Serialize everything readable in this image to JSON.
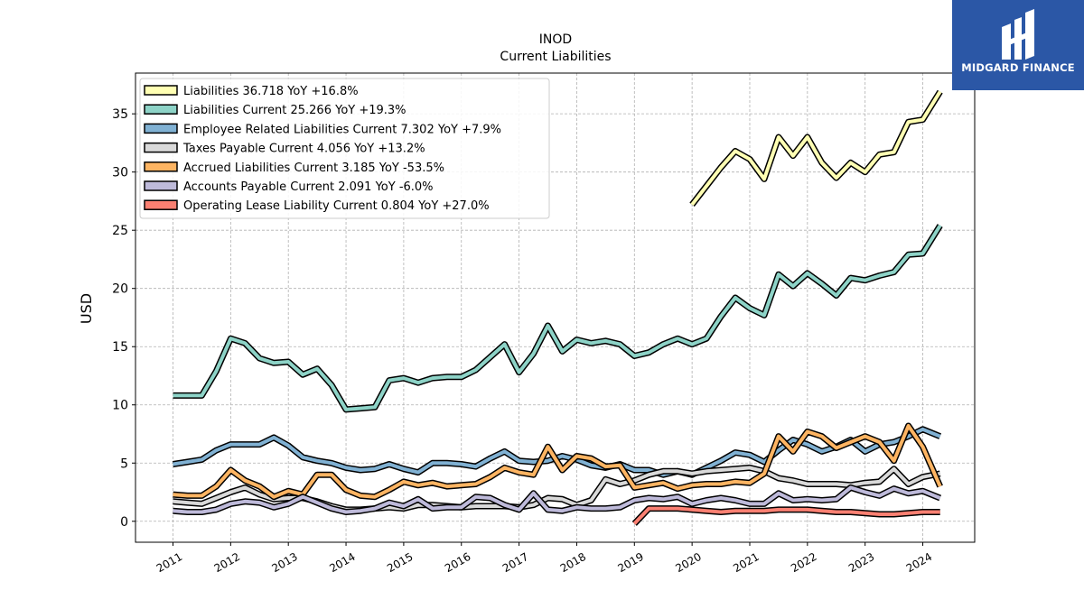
{
  "brand": {
    "name": "MIDGARD FINANCE",
    "bg": "#2b57a6"
  },
  "chart_data": {
    "type": "line",
    "title": "INOD",
    "subtitle": "Current  Liabilities",
    "ylabel": "USD",
    "xlabel": "",
    "xlim": [
      2010.35,
      2024.9
    ],
    "ylim": [
      -1.8,
      38.5
    ],
    "yticks": [
      0,
      5,
      10,
      15,
      20,
      25,
      30,
      35
    ],
    "xticks": [
      "2011",
      "2012",
      "2013",
      "2014",
      "2015",
      "2016",
      "2017",
      "2018",
      "2019",
      "2020",
      "2021",
      "2022",
      "2023",
      "2024"
    ],
    "grid": true,
    "legend_position": "top-left",
    "series": [
      {
        "name": "Liabilities",
        "legend": "Liabilities  36.718 YoY +16.8%",
        "color": "#ffffb3",
        "x": [
          2020.0,
          2020.25,
          2020.5,
          2020.75,
          2021.0,
          2021.25,
          2021.5,
          2021.75,
          2022.0,
          2022.25,
          2022.5,
          2022.75,
          2023.0,
          2023.25,
          2023.5,
          2023.75,
          2024.0,
          2024.3
        ],
        "y": [
          27.2,
          28.8,
          30.4,
          31.8,
          31.1,
          29.4,
          33.0,
          31.4,
          33.0,
          30.8,
          29.5,
          30.8,
          30.0,
          31.5,
          31.7,
          34.3,
          34.5,
          36.9
        ]
      },
      {
        "name": "Liabilities Current",
        "legend": "Liabilities Current  25.266 YoY +19.3%",
        "color": "#8dd3c7",
        "x": [
          2011.0,
          2011.25,
          2011.5,
          2011.75,
          2012.0,
          2012.25,
          2012.5,
          2012.75,
          2013.0,
          2013.25,
          2013.5,
          2013.75,
          2014.0,
          2014.25,
          2014.5,
          2014.75,
          2015.0,
          2015.25,
          2015.5,
          2015.75,
          2016.0,
          2016.25,
          2016.5,
          2016.75,
          2017.0,
          2017.25,
          2017.5,
          2017.75,
          2018.0,
          2018.25,
          2018.5,
          2018.75,
          2019.0,
          2019.25,
          2019.5,
          2019.75,
          2020.0,
          2020.25,
          2020.5,
          2020.75,
          2021.0,
          2021.25,
          2021.5,
          2021.75,
          2022.0,
          2022.25,
          2022.5,
          2022.75,
          2023.0,
          2023.25,
          2023.5,
          2023.75,
          2024.0,
          2024.3
        ],
        "y": [
          10.8,
          10.8,
          10.8,
          12.9,
          15.7,
          15.3,
          14.0,
          13.6,
          13.7,
          12.6,
          13.1,
          11.7,
          9.6,
          9.7,
          9.8,
          12.1,
          12.3,
          11.9,
          12.3,
          12.4,
          12.4,
          13.0,
          14.1,
          15.2,
          12.8,
          14.4,
          16.8,
          14.6,
          15.6,
          15.3,
          15.5,
          15.2,
          14.2,
          14.5,
          15.2,
          15.7,
          15.2,
          15.7,
          17.6,
          19.2,
          18.3,
          17.7,
          21.2,
          20.2,
          21.3,
          20.4,
          19.4,
          20.9,
          20.7,
          21.1,
          21.4,
          22.9,
          23.0,
          25.4
        ]
      },
      {
        "name": "Employee Related Liabilities Current",
        "legend": "Employee Related Liabilities Current  7.302 YoY +7.9%",
        "color": "#80b1d3",
        "x": [
          2011.0,
          2011.25,
          2011.5,
          2011.75,
          2012.0,
          2012.25,
          2012.5,
          2012.75,
          2013.0,
          2013.25,
          2013.5,
          2013.75,
          2014.0,
          2014.25,
          2014.5,
          2014.75,
          2015.0,
          2015.25,
          2015.5,
          2015.75,
          2016.0,
          2016.25,
          2016.5,
          2016.75,
          2017.0,
          2017.25,
          2017.5,
          2017.75,
          2018.0,
          2018.25,
          2018.5,
          2018.75,
          2019.0,
          2019.25,
          2019.5,
          2019.75,
          2020.0,
          2020.25,
          2020.5,
          2020.75,
          2021.0,
          2021.25,
          2021.5,
          2021.75,
          2022.0,
          2022.25,
          2022.5,
          2022.75,
          2023.0,
          2023.25,
          2023.5,
          2023.75,
          2024.0,
          2024.3
        ],
        "y": [
          4.9,
          5.1,
          5.3,
          6.1,
          6.6,
          6.6,
          6.6,
          7.2,
          6.5,
          5.5,
          5.2,
          5.0,
          4.6,
          4.4,
          4.5,
          4.9,
          4.5,
          4.2,
          5.0,
          5.0,
          4.9,
          4.7,
          5.4,
          6.0,
          5.2,
          5.1,
          5.2,
          5.6,
          5.3,
          4.8,
          4.6,
          4.9,
          4.4,
          4.4,
          4.0,
          4.3,
          4.0,
          4.6,
          5.2,
          5.9,
          5.7,
          5.1,
          6.1,
          7.0,
          6.6,
          6.0,
          6.4,
          7.0,
          6.0,
          6.6,
          6.8,
          7.3,
          7.9,
          7.3
        ]
      },
      {
        "name": "Taxes Payable Current",
        "legend": "Taxes Payable Current  4.056 YoY +13.2%",
        "color": "#d9d9d9",
        "x": [
          2011.0,
          2011.25,
          2011.5,
          2011.75,
          2012.0,
          2012.25,
          2012.5,
          2012.75,
          2013.0,
          2013.25,
          2013.5,
          2013.75,
          2014.0,
          2014.25,
          2014.5,
          2014.75,
          2015.0,
          2015.25,
          2015.5,
          2015.75,
          2016.0,
          2016.25,
          2016.5,
          2016.75,
          2017.0,
          2017.25,
          2017.5,
          2017.75,
          2018.0,
          2018.25,
          2018.5,
          2018.75,
          2019.0,
          2019.25,
          2019.5,
          2019.75,
          2020.0,
          2020.25,
          2020.5,
          2020.75,
          2021.0,
          2021.25,
          2021.5,
          2021.75,
          2022.0,
          2022.25,
          2022.5,
          2022.75,
          2023.0,
          2023.25,
          2023.5,
          2023.75,
          2024.0,
          2024.3
        ],
        "y": [
          1.7,
          1.6,
          1.5,
          2.0,
          2.5,
          2.9,
          2.3,
          1.9,
          2.0,
          2.0,
          1.7,
          1.3,
          1.0,
          1.0,
          1.1,
          1.2,
          1.1,
          1.4,
          1.4,
          1.3,
          1.2,
          1.3,
          1.3,
          1.3,
          1.2,
          1.4,
          2.0,
          1.9,
          1.4,
          1.8,
          3.6,
          3.2,
          3.5,
          4.0,
          4.3,
          4.3,
          4.1,
          4.3,
          4.4,
          4.5,
          4.6,
          4.3,
          3.7,
          3.5,
          3.2,
          3.2,
          3.2,
          3.1,
          3.3,
          3.4,
          4.5,
          3.2,
          3.8,
          4.1
        ]
      },
      {
        "name": "Accrued Liabilities Current",
        "legend": "Accrued Liabilities Current  3.185 YoY -53.5%",
        "color": "#fdb462",
        "x": [
          2011.0,
          2011.25,
          2011.5,
          2011.75,
          2012.0,
          2012.25,
          2012.5,
          2012.75,
          2013.0,
          2013.25,
          2013.5,
          2013.75,
          2014.0,
          2014.25,
          2014.5,
          2014.75,
          2015.0,
          2015.25,
          2015.5,
          2015.75,
          2016.0,
          2016.25,
          2016.5,
          2016.75,
          2017.0,
          2017.25,
          2017.5,
          2017.75,
          2018.0,
          2018.25,
          2018.5,
          2018.75,
          2019.0,
          2019.25,
          2019.5,
          2019.75,
          2020.0,
          2020.25,
          2020.5,
          2020.75,
          2021.0,
          2021.25,
          2021.5,
          2021.75,
          2022.0,
          2022.25,
          2022.5,
          2022.75,
          2023.0,
          2023.25,
          2023.5,
          2023.75,
          2024.0,
          2024.3
        ],
        "y": [
          2.3,
          2.2,
          2.2,
          3.0,
          4.4,
          3.5,
          3.0,
          2.1,
          2.6,
          2.3,
          4.0,
          4.0,
          2.7,
          2.2,
          2.1,
          2.7,
          3.4,
          3.1,
          3.3,
          3.0,
          3.1,
          3.2,
          3.8,
          4.6,
          4.2,
          4.0,
          6.4,
          4.4,
          5.6,
          5.4,
          4.7,
          4.8,
          2.9,
          3.1,
          3.3,
          2.8,
          3.1,
          3.2,
          3.2,
          3.4,
          3.3,
          4.1,
          7.3,
          6.0,
          7.7,
          7.3,
          6.3,
          6.8,
          7.3,
          6.8,
          5.2,
          8.2,
          6.4,
          3.0
        ]
      },
      {
        "name": "Accounts Payable Current",
        "legend": "Accounts Payable Current  2.091 YoY -6.0%",
        "color": "#bebada",
        "x": [
          2011.0,
          2011.25,
          2011.5,
          2011.75,
          2012.0,
          2012.25,
          2012.5,
          2012.75,
          2013.0,
          2013.25,
          2013.5,
          2013.75,
          2014.0,
          2014.25,
          2014.5,
          2014.75,
          2015.0,
          2015.25,
          2015.5,
          2015.75,
          2016.0,
          2016.25,
          2016.5,
          2016.75,
          2017.0,
          2017.25,
          2017.5,
          2017.75,
          2018.0,
          2018.25,
          2018.5,
          2018.75,
          2019.0,
          2019.25,
          2019.5,
          2019.75,
          2020.0,
          2020.25,
          2020.5,
          2020.75,
          2021.0,
          2021.25,
          2021.5,
          2021.75,
          2022.0,
          2022.25,
          2022.5,
          2022.75,
          2023.0,
          2023.25,
          2023.5,
          2023.75,
          2024.0,
          2024.3
        ],
        "y": [
          0.9,
          0.8,
          0.8,
          1.0,
          1.5,
          1.7,
          1.6,
          1.2,
          1.5,
          2.1,
          1.6,
          1.1,
          0.8,
          0.9,
          1.1,
          1.6,
          1.3,
          1.9,
          1.1,
          1.2,
          1.2,
          2.1,
          2.0,
          1.4,
          1.0,
          2.4,
          1.0,
          0.9,
          1.2,
          1.1,
          1.1,
          1.2,
          1.8,
          2.0,
          1.9,
          2.1,
          1.5,
          1.8,
          2.0,
          1.8,
          1.5,
          1.5,
          2.4,
          1.8,
          1.9,
          1.8,
          1.9,
          2.9,
          2.5,
          2.2,
          2.8,
          2.4,
          2.6,
          2.0
        ]
      },
      {
        "name": "Operating Lease Liability Current",
        "legend": "Operating Lease Liability Current  0.804 YoY +27.0%",
        "color": "#fb8072",
        "x": [
          2019.0,
          2019.25,
          2019.5,
          2019.75,
          2020.0,
          2020.25,
          2020.5,
          2020.75,
          2021.0,
          2021.25,
          2021.5,
          2021.75,
          2022.0,
          2022.25,
          2022.5,
          2022.75,
          2023.0,
          2023.25,
          2023.5,
          2023.75,
          2024.0,
          2024.3
        ],
        "y": [
          -0.2,
          1.1,
          1.1,
          1.1,
          1.0,
          0.9,
          0.8,
          0.9,
          0.9,
          0.9,
          1.0,
          1.0,
          1.0,
          0.9,
          0.8,
          0.8,
          0.7,
          0.6,
          0.6,
          0.7,
          0.8,
          0.8
        ]
      }
    ]
  }
}
